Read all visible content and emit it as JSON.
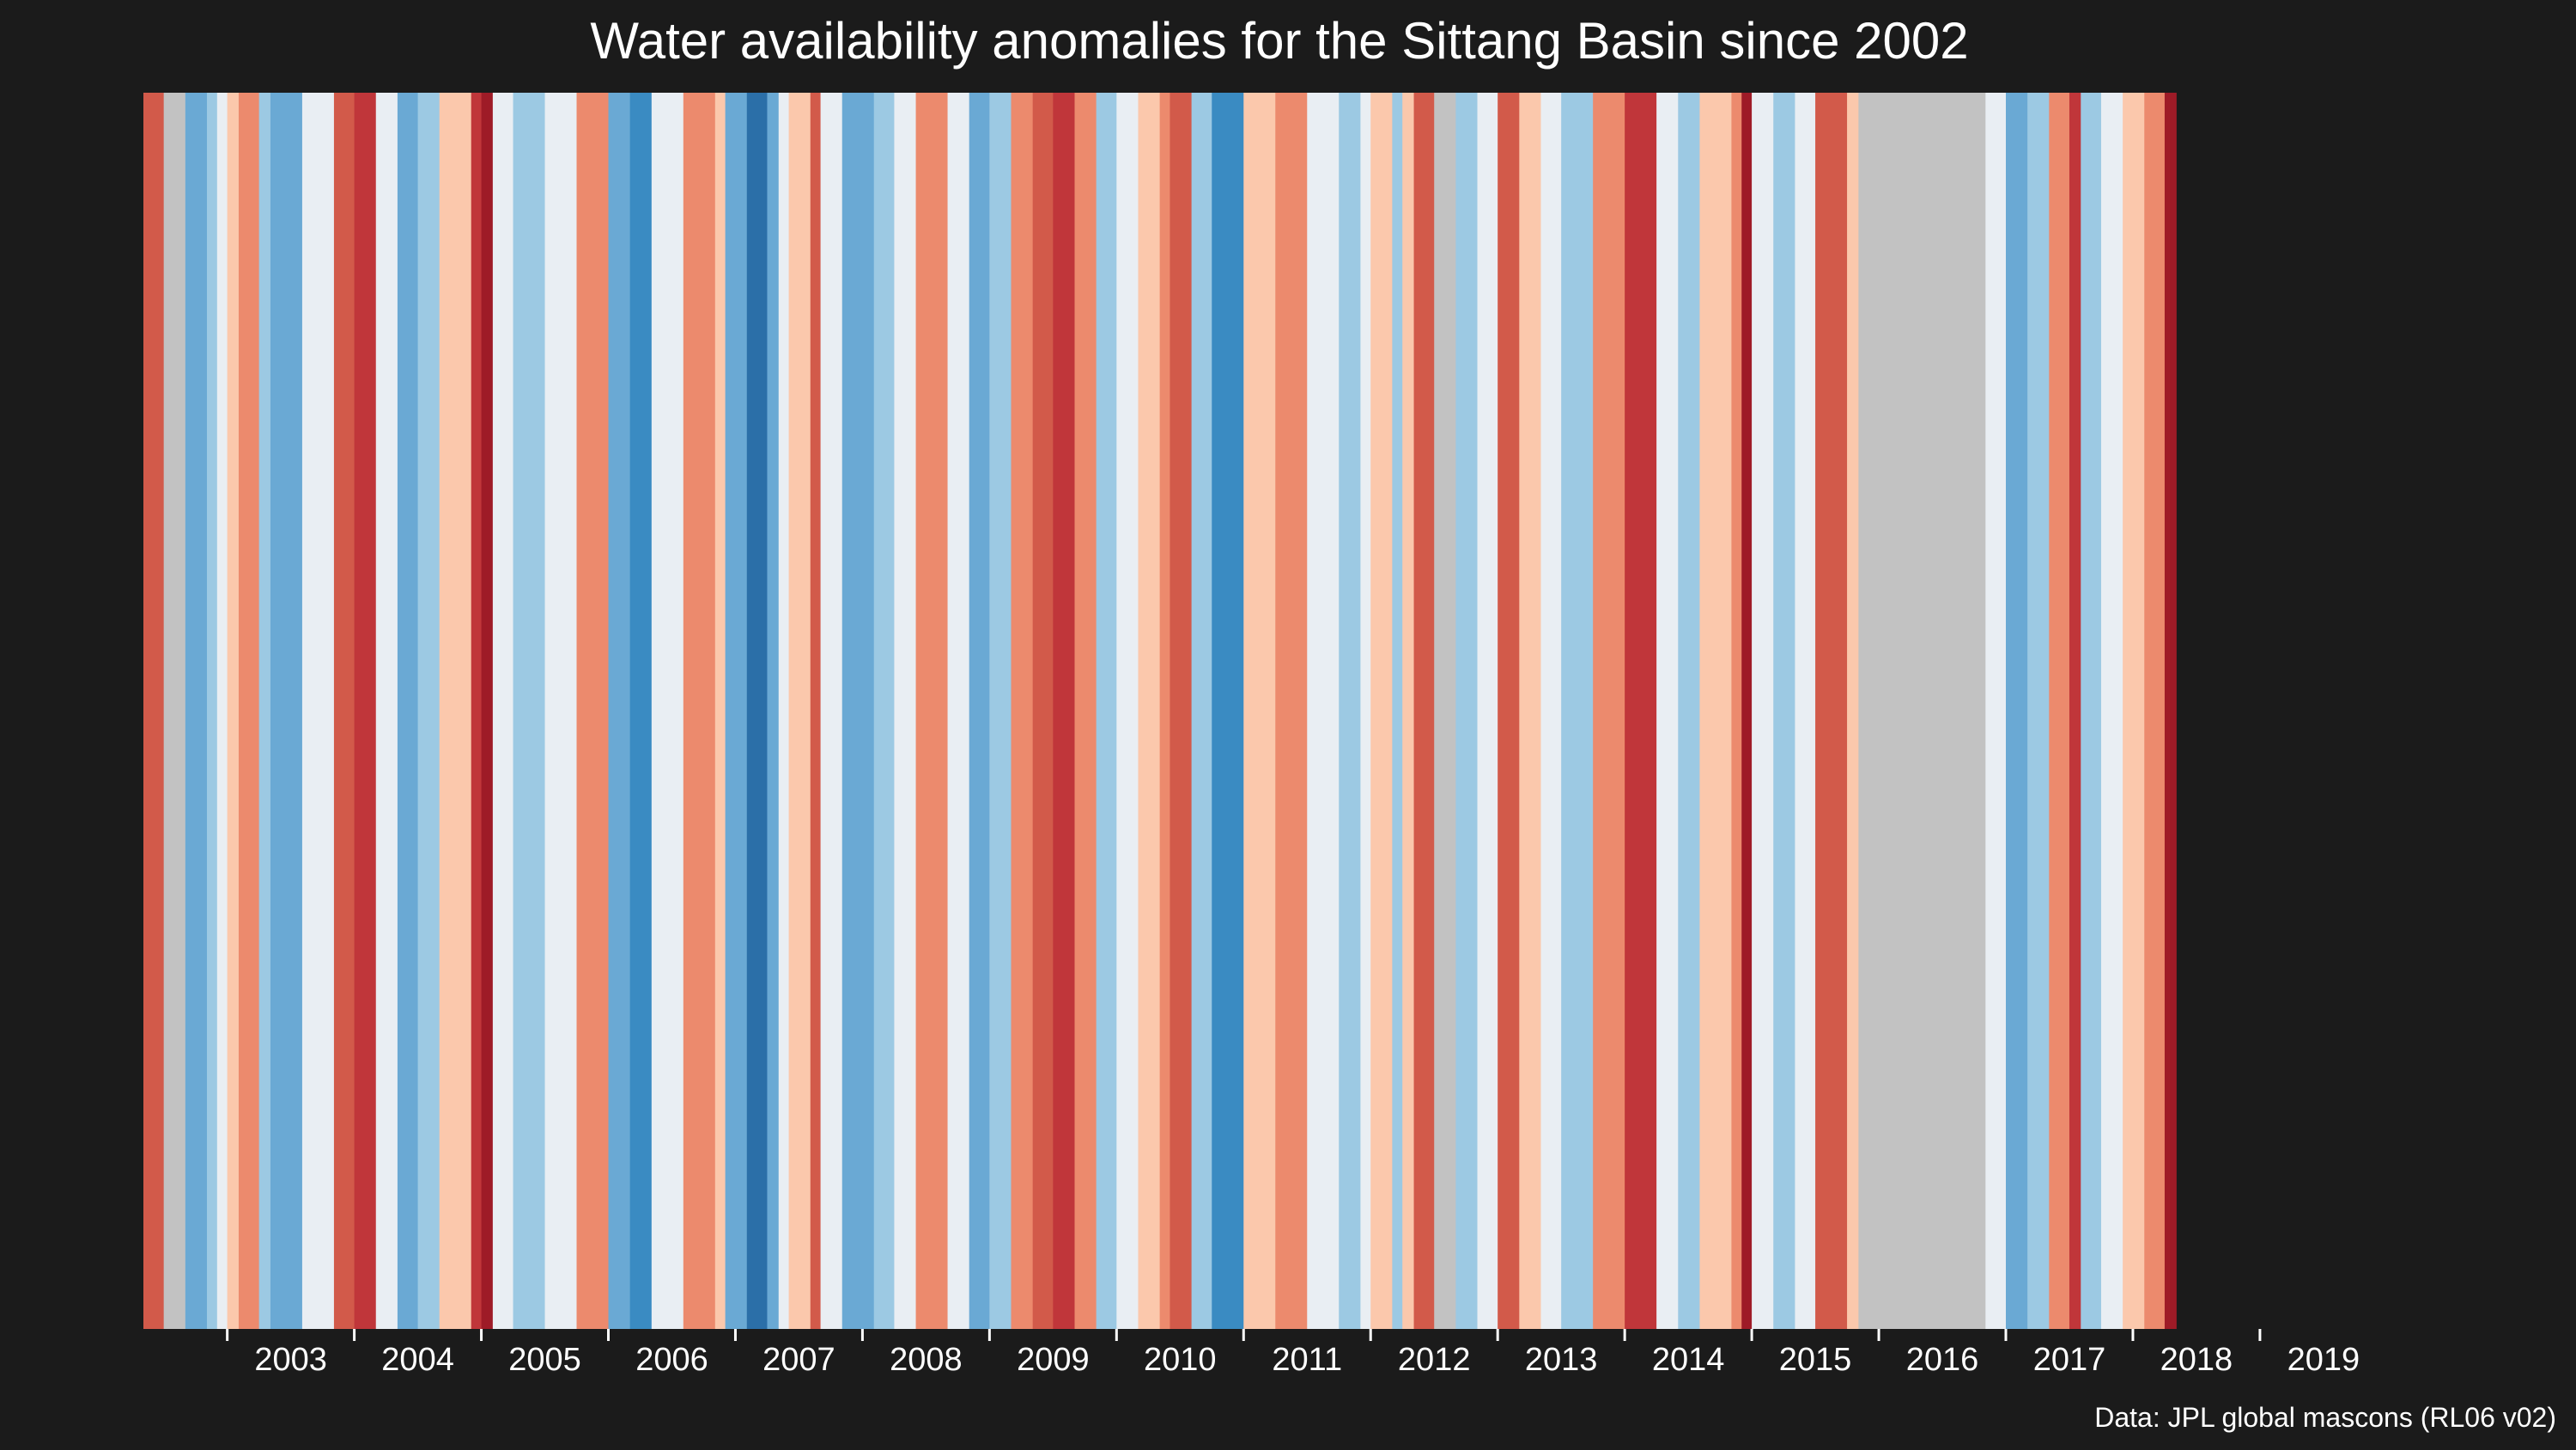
{
  "chart_data": {
    "type": "stripes",
    "title": "Water availability anomalies for the Sittang Basin since 2002",
    "caption": "Data: JPL global mascons (RL06 v02)",
    "xlabel": "",
    "ylabel": "",
    "x_start": 2002.0,
    "x_end": 2020.08,
    "ticks": [
      {
        "label": "2003",
        "pos": 2002.66
      },
      {
        "label": "2004",
        "pos": 2003.66
      },
      {
        "label": "2005",
        "pos": 2004.66
      },
      {
        "label": "2006",
        "pos": 2005.66
      },
      {
        "label": "2007",
        "pos": 2006.66
      },
      {
        "label": "2008",
        "pos": 2007.66
      },
      {
        "label": "2009",
        "pos": 2008.66
      },
      {
        "label": "2010",
        "pos": 2009.66
      },
      {
        "label": "2011",
        "pos": 2010.66
      },
      {
        "label": "2012",
        "pos": 2011.66
      },
      {
        "label": "2013",
        "pos": 2012.66
      },
      {
        "label": "2014",
        "pos": 2013.66
      },
      {
        "label": "2015",
        "pos": 2014.66
      },
      {
        "label": "2016",
        "pos": 2015.66
      },
      {
        "label": "2017",
        "pos": 2016.66
      },
      {
        "label": "2018",
        "pos": 2017.66
      },
      {
        "label": "2019",
        "pos": 2018.66
      }
    ],
    "palette": {
      "-4": "#2b6fa8",
      "-3": "#3a8bc2",
      "-2": "#6aa9d4",
      "-1": "#9cc9e3",
      "0": "#e9eef3",
      "1": "#fbc8ac",
      "2": "#ec8a6d",
      "3": "#d25a4a",
      "4": "#c0363a",
      "5": "#9e1b27",
      "missing": "#c2c2c2"
    },
    "stripes": [
      {
        "start": 2002.0,
        "end": 2002.16,
        "cls": 3
      },
      {
        "start": 2002.16,
        "end": 2002.33,
        "cls": "missing"
      },
      {
        "start": 2002.33,
        "end": 2002.5,
        "cls": -2
      },
      {
        "start": 2002.5,
        "end": 2002.58,
        "cls": -1
      },
      {
        "start": 2002.58,
        "end": 2002.66,
        "cls": 0
      },
      {
        "start": 2002.66,
        "end": 2002.75,
        "cls": 1
      },
      {
        "start": 2002.75,
        "end": 2002.91,
        "cls": 2
      },
      {
        "start": 2002.91,
        "end": 2003.0,
        "cls": -1
      },
      {
        "start": 2003.0,
        "end": 2003.25,
        "cls": -2
      },
      {
        "start": 2003.25,
        "end": 2003.5,
        "cls": 0
      },
      {
        "start": 2003.5,
        "end": 2003.66,
        "cls": 3
      },
      {
        "start": 2003.66,
        "end": 2003.83,
        "cls": 4
      },
      {
        "start": 2003.83,
        "end": 2004.0,
        "cls": 0
      },
      {
        "start": 2004.0,
        "end": 2004.16,
        "cls": -2
      },
      {
        "start": 2004.16,
        "end": 2004.33,
        "cls": -1
      },
      {
        "start": 2004.33,
        "end": 2004.58,
        "cls": 1
      },
      {
        "start": 2004.58,
        "end": 2004.66,
        "cls": 4
      },
      {
        "start": 2004.66,
        "end": 2004.75,
        "cls": 5
      },
      {
        "start": 2004.75,
        "end": 2004.91,
        "cls": 0
      },
      {
        "start": 2004.91,
        "end": 2005.16,
        "cls": -1
      },
      {
        "start": 2005.16,
        "end": 2005.41,
        "cls": 0
      },
      {
        "start": 2005.41,
        "end": 2005.66,
        "cls": 2
      },
      {
        "start": 2005.66,
        "end": 2005.83,
        "cls": -2
      },
      {
        "start": 2005.83,
        "end": 2006.0,
        "cls": -3
      },
      {
        "start": 2006.0,
        "end": 2006.25,
        "cls": 0
      },
      {
        "start": 2006.25,
        "end": 2006.5,
        "cls": 2
      },
      {
        "start": 2006.5,
        "end": 2006.58,
        "cls": 1
      },
      {
        "start": 2006.58,
        "end": 2006.75,
        "cls": -2
      },
      {
        "start": 2006.75,
        "end": 2006.91,
        "cls": -4
      },
      {
        "start": 2006.91,
        "end": 2007.0,
        "cls": -2
      },
      {
        "start": 2007.0,
        "end": 2007.08,
        "cls": 0
      },
      {
        "start": 2007.08,
        "end": 2007.25,
        "cls": 1
      },
      {
        "start": 2007.25,
        "end": 2007.33,
        "cls": 3
      },
      {
        "start": 2007.33,
        "end": 2007.5,
        "cls": 0
      },
      {
        "start": 2007.5,
        "end": 2007.75,
        "cls": -2
      },
      {
        "start": 2007.75,
        "end": 2007.91,
        "cls": -1
      },
      {
        "start": 2007.91,
        "end": 2008.08,
        "cls": 0
      },
      {
        "start": 2008.08,
        "end": 2008.33,
        "cls": 2
      },
      {
        "start": 2008.33,
        "end": 2008.5,
        "cls": 0
      },
      {
        "start": 2008.5,
        "end": 2008.66,
        "cls": -2
      },
      {
        "start": 2008.66,
        "end": 2008.83,
        "cls": -1
      },
      {
        "start": 2008.83,
        "end": 2009.0,
        "cls": 2
      },
      {
        "start": 2009.0,
        "end": 2009.16,
        "cls": 3
      },
      {
        "start": 2009.16,
        "end": 2009.33,
        "cls": 4
      },
      {
        "start": 2009.33,
        "end": 2009.5,
        "cls": 2
      },
      {
        "start": 2009.5,
        "end": 2009.66,
        "cls": -1
      },
      {
        "start": 2009.66,
        "end": 2009.83,
        "cls": 0
      },
      {
        "start": 2009.83,
        "end": 2010.0,
        "cls": 1
      },
      {
        "start": 2010.0,
        "end": 2010.08,
        "cls": 2
      },
      {
        "start": 2010.08,
        "end": 2010.25,
        "cls": 3
      },
      {
        "start": 2010.25,
        "end": 2010.41,
        "cls": -1
      },
      {
        "start": 2010.41,
        "end": 2010.66,
        "cls": -3
      },
      {
        "start": 2010.66,
        "end": 2010.91,
        "cls": 1
      },
      {
        "start": 2010.91,
        "end": 2011.16,
        "cls": 2
      },
      {
        "start": 2011.16,
        "end": 2011.41,
        "cls": 0
      },
      {
        "start": 2011.41,
        "end": 2011.58,
        "cls": -1
      },
      {
        "start": 2011.58,
        "end": 2011.66,
        "cls": 0
      },
      {
        "start": 2011.66,
        "end": 2011.83,
        "cls": 1
      },
      {
        "start": 2011.83,
        "end": 2011.91,
        "cls": -1
      },
      {
        "start": 2011.91,
        "end": 2012.0,
        "cls": 1
      },
      {
        "start": 2012.0,
        "end": 2012.16,
        "cls": 3
      },
      {
        "start": 2012.16,
        "end": 2012.33,
        "cls": "missing"
      },
      {
        "start": 2012.33,
        "end": 2012.5,
        "cls": -1
      },
      {
        "start": 2012.5,
        "end": 2012.66,
        "cls": 0
      },
      {
        "start": 2012.66,
        "end": 2012.83,
        "cls": 3
      },
      {
        "start": 2012.83,
        "end": 2013.0,
        "cls": 1
      },
      {
        "start": 2013.0,
        "end": 2013.16,
        "cls": 0
      },
      {
        "start": 2013.16,
        "end": 2013.41,
        "cls": -1
      },
      {
        "start": 2013.41,
        "end": 2013.66,
        "cls": 2
      },
      {
        "start": 2013.66,
        "end": 2013.91,
        "cls": 4
      },
      {
        "start": 2013.91,
        "end": 2014.08,
        "cls": 0
      },
      {
        "start": 2014.08,
        "end": 2014.25,
        "cls": -1
      },
      {
        "start": 2014.25,
        "end": 2014.5,
        "cls": 1
      },
      {
        "start": 2014.5,
        "end": 2014.58,
        "cls": 2
      },
      {
        "start": 2014.58,
        "end": 2014.66,
        "cls": 5
      },
      {
        "start": 2014.66,
        "end": 2014.83,
        "cls": 0
      },
      {
        "start": 2014.83,
        "end": 2015.0,
        "cls": -1
      },
      {
        "start": 2015.0,
        "end": 2015.16,
        "cls": 0
      },
      {
        "start": 2015.16,
        "end": 2015.41,
        "cls": 3
      },
      {
        "start": 2015.41,
        "end": 2015.5,
        "cls": 1
      },
      {
        "start": 2015.5,
        "end": 2016.5,
        "cls": "missing"
      },
      {
        "start": 2016.5,
        "end": 2016.66,
        "cls": 0
      },
      {
        "start": 2016.66,
        "end": 2016.83,
        "cls": -2
      },
      {
        "start": 2016.83,
        "end": 2017.0,
        "cls": -1
      },
      {
        "start": 2017.0,
        "end": 2017.16,
        "cls": 2
      },
      {
        "start": 2017.16,
        "end": 2017.25,
        "cls": 4
      },
      {
        "start": 2017.25,
        "end": 2017.41,
        "cls": -1
      },
      {
        "start": 2017.41,
        "end": 2017.58,
        "cls": 0
      },
      {
        "start": 2017.58,
        "end": 2017.75,
        "cls": 1
      },
      {
        "start": 2017.75,
        "end": 2017.91,
        "cls": 2
      },
      {
        "start": 2017.91,
        "end": 2018.0,
        "cls": 5
      }
    ]
  }
}
